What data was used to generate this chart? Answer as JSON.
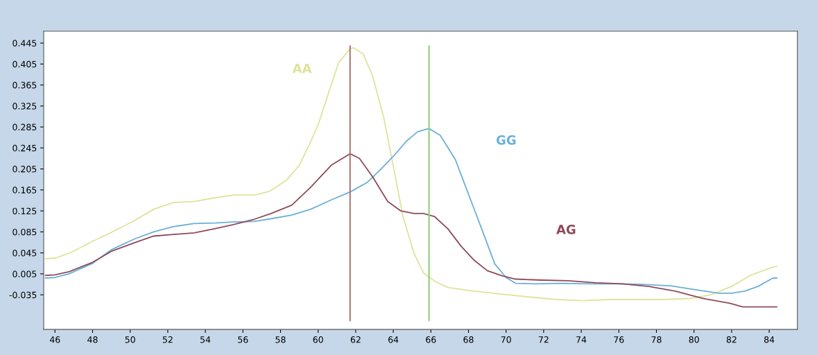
{
  "chart_data": {
    "type": "line",
    "xlim": [
      45.4,
      85.5
    ],
    "ylim": [
      -0.101,
      0.4675
    ],
    "xticks": [
      46,
      48,
      50,
      52,
      54,
      56,
      58,
      60,
      62,
      64,
      66,
      68,
      70,
      72,
      74,
      76,
      78,
      80,
      82,
      84
    ],
    "yticks": [
      {
        "value": 0.445,
        "label": "0.445"
      },
      {
        "value": 0.405,
        "label": "0.405"
      },
      {
        "value": 0.365,
        "label": "0.365"
      },
      {
        "value": 0.325,
        "label": "0.325"
      },
      {
        "value": 0.285,
        "label": "0.285"
      },
      {
        "value": 0.245,
        "label": "0.245"
      },
      {
        "value": 0.205,
        "label": "0.205"
      },
      {
        "value": 0.165,
        "label": "0.165"
      },
      {
        "value": 0.125,
        "label": "0.125"
      },
      {
        "value": 0.085,
        "label": "0.085"
      },
      {
        "value": 0.045,
        "label": "0.045"
      },
      {
        "value": 0.005,
        "label": "0.005"
      },
      {
        "value": -0.035,
        "label": "-0.035"
      }
    ],
    "grid": false,
    "legend": false,
    "series": [
      {
        "name": "AA",
        "color": "#dfe39a",
        "x": [
          45.5,
          46,
          46.75,
          48,
          49,
          50.2,
          51.25,
          52.3,
          53.4,
          54.5,
          55.5,
          56.6,
          57.4,
          58.3,
          59,
          59.5,
          60,
          60.6,
          61.1,
          61.7,
          61.9,
          62.4,
          62.9,
          63.5,
          64,
          64.5,
          65.1,
          65.6,
          66.2,
          66.9,
          68.3,
          69.8,
          71.2,
          72.7,
          74.1,
          75.5,
          76.9,
          78.4,
          79.8,
          80.9,
          82,
          83,
          84.2,
          84.4
        ],
        "values": [
          0.034,
          0.035,
          0.044,
          0.067,
          0.084,
          0.106,
          0.128,
          0.141,
          0.143,
          0.15,
          0.155,
          0.155,
          0.162,
          0.183,
          0.212,
          0.249,
          0.289,
          0.355,
          0.408,
          0.434,
          0.436,
          0.424,
          0.382,
          0.302,
          0.21,
          0.117,
          0.044,
          0.007,
          -0.009,
          -0.021,
          -0.028,
          -0.034,
          -0.039,
          -0.044,
          -0.046,
          -0.044,
          -0.044,
          -0.044,
          -0.042,
          -0.035,
          -0.019,
          0.002,
          0.018,
          0.019
        ]
      },
      {
        "name": "GG",
        "color": "#6ab0d8",
        "x": [
          45.5,
          46,
          46.75,
          48,
          49,
          50.2,
          51.25,
          52.3,
          53.4,
          54.5,
          55.5,
          56.6,
          57.5,
          58.6,
          59.6,
          60.7,
          61.7,
          62.6,
          63.3,
          64,
          64.7,
          65.3,
          65.9,
          66.5,
          67.3,
          68,
          68.7,
          69.4,
          70,
          70.5,
          71.6,
          73,
          74.5,
          75.9,
          77.3,
          78.8,
          80.2,
          81.3,
          82,
          82.7,
          83.4,
          84.2,
          84.4
        ],
        "values": [
          -0.003,
          -0.002,
          0.005,
          0.025,
          0.051,
          0.071,
          0.085,
          0.095,
          0.101,
          0.102,
          0.104,
          0.105,
          0.11,
          0.117,
          0.128,
          0.146,
          0.161,
          0.179,
          0.203,
          0.229,
          0.258,
          0.276,
          0.282,
          0.269,
          0.223,
          0.157,
          0.091,
          0.024,
          -0.002,
          -0.013,
          -0.014,
          -0.013,
          -0.014,
          -0.014,
          -0.015,
          -0.018,
          -0.026,
          -0.032,
          -0.032,
          -0.028,
          -0.019,
          -0.003,
          -0.003
        ]
      },
      {
        "name": "AG",
        "color": "#8e4a5a",
        "x": [
          45.5,
          46,
          46.75,
          48,
          49,
          50.2,
          51.25,
          52.3,
          53.4,
          54.5,
          55.5,
          56.6,
          57.5,
          58.6,
          59.6,
          60.7,
          61.7,
          62.2,
          62.9,
          63.7,
          64.4,
          65.1,
          65.6,
          66.2,
          66.9,
          67.6,
          68.3,
          69,
          69.8,
          70.5,
          71.9,
          73.3,
          74.8,
          76.2,
          77.6,
          79,
          80.5,
          81.9,
          82.6,
          84.4
        ],
        "values": [
          0.002,
          0.003,
          0.009,
          0.027,
          0.048,
          0.064,
          0.077,
          0.08,
          0.083,
          0.091,
          0.099,
          0.109,
          0.12,
          0.136,
          0.17,
          0.212,
          0.234,
          0.225,
          0.19,
          0.143,
          0.125,
          0.12,
          0.12,
          0.114,
          0.091,
          0.058,
          0.031,
          0.011,
          0.001,
          -0.005,
          -0.007,
          -0.008,
          -0.012,
          -0.014,
          -0.019,
          -0.028,
          -0.042,
          -0.051,
          -0.058,
          -0.058
        ]
      }
    ],
    "ref_lines": [
      {
        "axis": "x",
        "value": 61.7,
        "label": null,
        "color": "#a87870"
      },
      {
        "axis": "x",
        "value": 65.9,
        "label": null,
        "color": "#8ccf7a"
      }
    ]
  }
}
